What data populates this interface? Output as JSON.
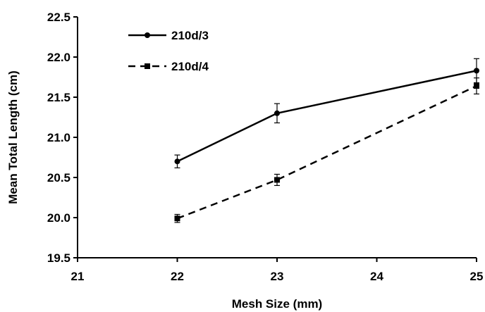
{
  "chart_data": {
    "type": "line",
    "title": "",
    "xlabel": "Mesh Size (mm)",
    "ylabel": "Mean Total Length (cm)",
    "xlim": [
      21,
      25
    ],
    "ylim": [
      19.5,
      22.5
    ],
    "x_ticks": [
      "21",
      "22",
      "23",
      "24",
      "25"
    ],
    "y_ticks": [
      "19.5",
      "20.0",
      "20.5",
      "21.0",
      "21.5",
      "22.0",
      "22.5"
    ],
    "grid": false,
    "legend_position": "top-left",
    "series": [
      {
        "name": "210d/3",
        "marker": "circle",
        "line_style": "solid",
        "color": "#000000",
        "x": [
          22,
          23,
          25
        ],
        "y": [
          20.7,
          21.3,
          21.83
        ],
        "error": [
          0.08,
          0.12,
          0.15
        ]
      },
      {
        "name": "210d/4",
        "marker": "square",
        "line_style": "dashed",
        "color": "#000000",
        "x": [
          22,
          23,
          25
        ],
        "y": [
          19.99,
          20.47,
          21.64
        ],
        "error": [
          0.05,
          0.07,
          0.1
        ]
      }
    ]
  }
}
